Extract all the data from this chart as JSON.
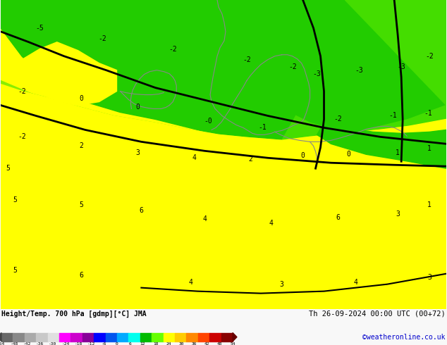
{
  "title_left": "Height/Temp. 700 hPa [gdmp][°C] JMA",
  "title_right": "Th 26-09-2024 00:00 UTC (00+72)",
  "credit": "©weatheronline.co.uk",
  "colorbar_values": [
    -54,
    -48,
    -42,
    -36,
    -30,
    -24,
    -18,
    -12,
    -6,
    0,
    6,
    12,
    18,
    24,
    30,
    36,
    42,
    48,
    54
  ],
  "fig_width": 6.34,
  "fig_height": 4.9,
  "dpi": 100,
  "map_bg": "#ffff00",
  "green_dark": "#00cc00",
  "green_light": "#66dd00",
  "yellow": "#ffff00",
  "colors_cbar": [
    "#808080",
    "#999999",
    "#b0b0b0",
    "#cccccc",
    "#e0e0e0",
    "#ff00ff",
    "#cc00cc",
    "#880099",
    "#0000ff",
    "#0055ff",
    "#00aaff",
    "#00ffee",
    "#00cc00",
    "#66ff00",
    "#ffff00",
    "#ffcc00",
    "#ff8800",
    "#ff4400",
    "#cc0000",
    "#880000"
  ]
}
